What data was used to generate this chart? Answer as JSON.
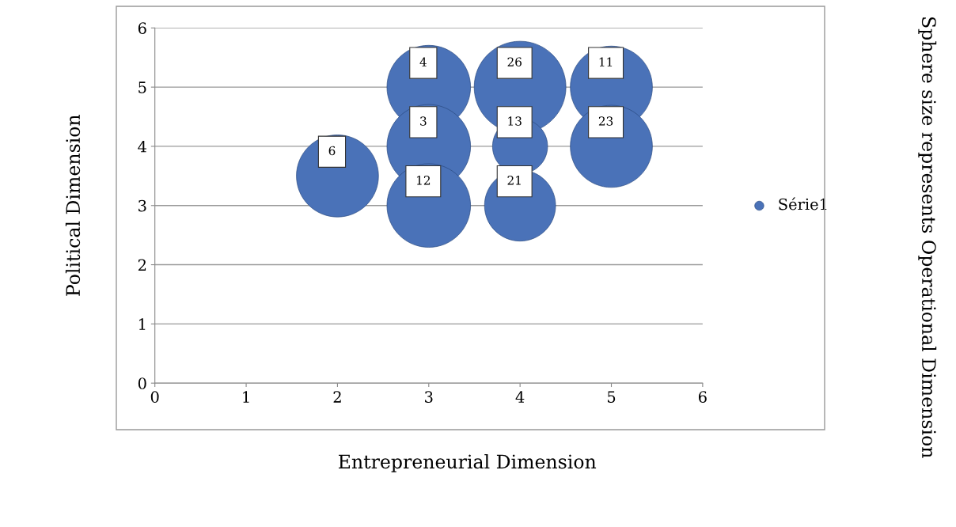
{
  "chart_data": {
    "type": "bubble",
    "xlabel": "Entrepreneurial Dimension",
    "ylabel": "Political Dimension",
    "x": [
      3,
      4,
      5,
      3,
      4,
      5,
      2,
      3,
      4
    ],
    "series": [
      {
        "name": "Série1",
        "color": "#4a72b8",
        "values": [
          5,
          5,
          5,
          4,
          4,
          4,
          3.5,
          3,
          3
        ],
        "sizes": [
          0.83,
          1,
          0.8,
          0.83,
          0.36,
          0.8,
          0.8,
          0.83,
          0.6
        ]
      }
    ],
    "xlim": [
      0,
      6
    ],
    "ylim": [
      0,
      6
    ],
    "xticks": [
      0,
      1,
      2,
      3,
      4,
      5,
      6
    ],
    "yticks": [
      0,
      1,
      2,
      3,
      4,
      5,
      6
    ],
    "grid": "y",
    "legend": "right",
    "annotations": [
      {
        "text": "4",
        "x": 3,
        "y": 5
      },
      {
        "text": "26",
        "x": 4,
        "y": 5
      },
      {
        "text": "11",
        "x": 5,
        "y": 5
      },
      {
        "text": "3",
        "x": 3,
        "y": 4
      },
      {
        "text": "13",
        "x": 4,
        "y": 4
      },
      {
        "text": "23",
        "x": 5,
        "y": 4
      },
      {
        "text": "6",
        "x": 2,
        "y": 3.5
      },
      {
        "text": "12",
        "x": 3,
        "y": 3
      },
      {
        "text": "21",
        "x": 4,
        "y": 3
      },
      "Sphere size represents Operational Dimension"
    ]
  }
}
